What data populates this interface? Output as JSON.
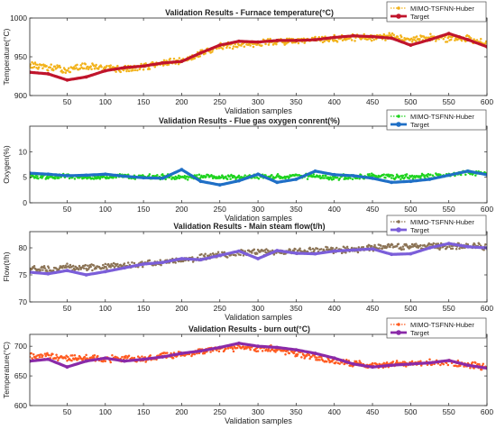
{
  "chart_data": [
    {
      "type": "line",
      "title": "Validation Results - Furnace temperature(°C)",
      "xlabel": "Validation samples",
      "ylabel": "Temperature(°C)",
      "xlim": [
        1,
        600
      ],
      "ylim": [
        900,
        1000
      ],
      "xticks": [
        50,
        100,
        150,
        200,
        250,
        300,
        350,
        400,
        450,
        500,
        550,
        600
      ],
      "yticks": [
        900,
        950,
        1000
      ],
      "legend_position": "top-right",
      "series": [
        {
          "name": "MIMO-TSFNN-Huber",
          "color": "#f2b21a",
          "style": "dots",
          "x": [
            1,
            25,
            50,
            75,
            100,
            125,
            150,
            175,
            200,
            225,
            250,
            275,
            300,
            325,
            350,
            375,
            400,
            425,
            450,
            475,
            500,
            525,
            550,
            575,
            600
          ],
          "y": [
            940,
            936,
            933,
            938,
            935,
            934,
            937,
            942,
            944,
            955,
            963,
            966,
            968,
            970,
            969,
            972,
            973,
            975,
            974,
            976,
            973,
            975,
            974,
            973,
            968
          ]
        },
        {
          "name": "Target",
          "color": "#c0142c",
          "style": "thick",
          "x": [
            1,
            25,
            50,
            75,
            100,
            125,
            150,
            175,
            200,
            225,
            250,
            275,
            300,
            325,
            350,
            375,
            400,
            425,
            450,
            475,
            500,
            525,
            550,
            575,
            600
          ],
          "y": [
            930,
            928,
            920,
            924,
            932,
            936,
            938,
            942,
            944,
            955,
            965,
            970,
            969,
            971,
            971,
            972,
            975,
            977,
            976,
            974,
            965,
            972,
            980,
            972,
            963
          ]
        }
      ]
    },
    {
      "type": "line",
      "title": "Validation Results - Flue gas oxygen conrent(%)",
      "xlabel": "Validation samples",
      "ylabel": "Oxygen(%)",
      "xlim": [
        1,
        600
      ],
      "ylim": [
        0,
        15
      ],
      "xticks": [
        50,
        100,
        150,
        200,
        250,
        300,
        350,
        400,
        450,
        500,
        550,
        600
      ],
      "yticks": [
        0,
        5,
        10
      ],
      "legend_position": "top-right",
      "series": [
        {
          "name": "MIMO-TSFNN-Huber",
          "color": "#1fd31f",
          "style": "dots",
          "x": [
            1,
            25,
            50,
            75,
            100,
            125,
            150,
            175,
            200,
            225,
            250,
            275,
            300,
            325,
            350,
            375,
            400,
            425,
            450,
            475,
            500,
            525,
            550,
            575,
            600
          ],
          "y": [
            5.2,
            5.1,
            5.2,
            5.0,
            5.1,
            5.2,
            5.0,
            5.1,
            5.0,
            5.1,
            5.0,
            5.1,
            5.2,
            5.1,
            5.2,
            5.1,
            5.0,
            5.1,
            5.2,
            5.0,
            5.1,
            5.2,
            5.4,
            5.8,
            6.0
          ]
        },
        {
          "name": "Target",
          "color": "#1f6fc6",
          "style": "thick",
          "x": [
            1,
            25,
            50,
            75,
            100,
            125,
            150,
            175,
            200,
            225,
            250,
            275,
            300,
            325,
            350,
            375,
            400,
            425,
            450,
            475,
            500,
            525,
            550,
            575,
            600
          ],
          "y": [
            5.8,
            5.6,
            5.3,
            5.4,
            5.6,
            5.2,
            4.9,
            4.8,
            6.5,
            4.2,
            3.5,
            4.3,
            5.6,
            4.0,
            4.6,
            6.2,
            5.5,
            5.3,
            4.8,
            4.0,
            4.2,
            4.6,
            5.4,
            6.2,
            5.5
          ]
        }
      ]
    },
    {
      "type": "line",
      "title": "Validation Results - Main steam flow(t/h)",
      "xlabel": "Validation samples",
      "ylabel": "Flow(t/h)",
      "xlim": [
        1,
        600
      ],
      "ylim": [
        70,
        83
      ],
      "xticks": [
        50,
        100,
        150,
        200,
        250,
        300,
        350,
        400,
        450,
        500,
        550,
        600
      ],
      "yticks": [
        70,
        75,
        80
      ],
      "legend_position": "top-right",
      "series": [
        {
          "name": "MIMO-TSFNN-Huber",
          "color": "#8b7355",
          "style": "dots",
          "x": [
            1,
            25,
            50,
            75,
            100,
            125,
            150,
            175,
            200,
            225,
            250,
            275,
            300,
            325,
            350,
            375,
            400,
            425,
            450,
            475,
            500,
            525,
            550,
            575,
            600
          ],
          "y": [
            76.2,
            76.0,
            76.5,
            76.3,
            76.6,
            76.8,
            77.0,
            77.4,
            77.8,
            78.2,
            78.6,
            79.0,
            79.3,
            79.1,
            79.4,
            79.5,
            79.6,
            79.7,
            80.0,
            80.2,
            80.1,
            80.4,
            80.3,
            80.5,
            80.0
          ]
        },
        {
          "name": "Target",
          "color": "#7b5ed9",
          "style": "thick",
          "x": [
            1,
            25,
            50,
            75,
            100,
            125,
            150,
            175,
            200,
            225,
            250,
            275,
            300,
            325,
            350,
            375,
            400,
            425,
            450,
            475,
            500,
            525,
            550,
            575,
            600
          ],
          "y": [
            75.5,
            75.2,
            75.8,
            75.0,
            75.6,
            76.3,
            77.0,
            77.3,
            78.0,
            77.8,
            78.6,
            79.4,
            78.0,
            79.5,
            79.0,
            78.9,
            79.4,
            79.6,
            79.8,
            78.8,
            78.9,
            80.0,
            80.8,
            80.2,
            80.0
          ]
        }
      ]
    },
    {
      "type": "line",
      "title": "Validation Results - burn out(°C)",
      "xlabel": "Validation samples",
      "ylabel": "Temperature(°C)",
      "xlim": [
        1,
        600
      ],
      "ylim": [
        600,
        720
      ],
      "xticks": [
        50,
        100,
        150,
        200,
        250,
        300,
        350,
        400,
        450,
        500,
        550,
        600
      ],
      "yticks": [
        600,
        650,
        700
      ],
      "legend_position": "top-right",
      "series": [
        {
          "name": "MIMO-TSFNN-Huber",
          "color": "#ff5a1f",
          "style": "dots",
          "x": [
            1,
            25,
            50,
            75,
            100,
            125,
            150,
            175,
            200,
            225,
            250,
            275,
            300,
            325,
            350,
            375,
            400,
            425,
            450,
            475,
            500,
            525,
            550,
            575,
            600
          ],
          "y": [
            682,
            684,
            680,
            681,
            678,
            680,
            677,
            683,
            686,
            690,
            695,
            698,
            697,
            695,
            688,
            682,
            675,
            670,
            668,
            670,
            671,
            672,
            673,
            669,
            665
          ]
        },
        {
          "name": "Target",
          "color": "#8a2aa8",
          "style": "thick",
          "x": [
            1,
            25,
            50,
            75,
            100,
            125,
            150,
            175,
            200,
            225,
            250,
            275,
            300,
            325,
            350,
            375,
            400,
            425,
            450,
            475,
            500,
            525,
            550,
            575,
            600
          ],
          "y": [
            675,
            678,
            665,
            675,
            680,
            675,
            678,
            682,
            688,
            692,
            698,
            705,
            700,
            698,
            694,
            688,
            680,
            670,
            665,
            668,
            670,
            672,
            676,
            668,
            663
          ]
        }
      ]
    }
  ]
}
